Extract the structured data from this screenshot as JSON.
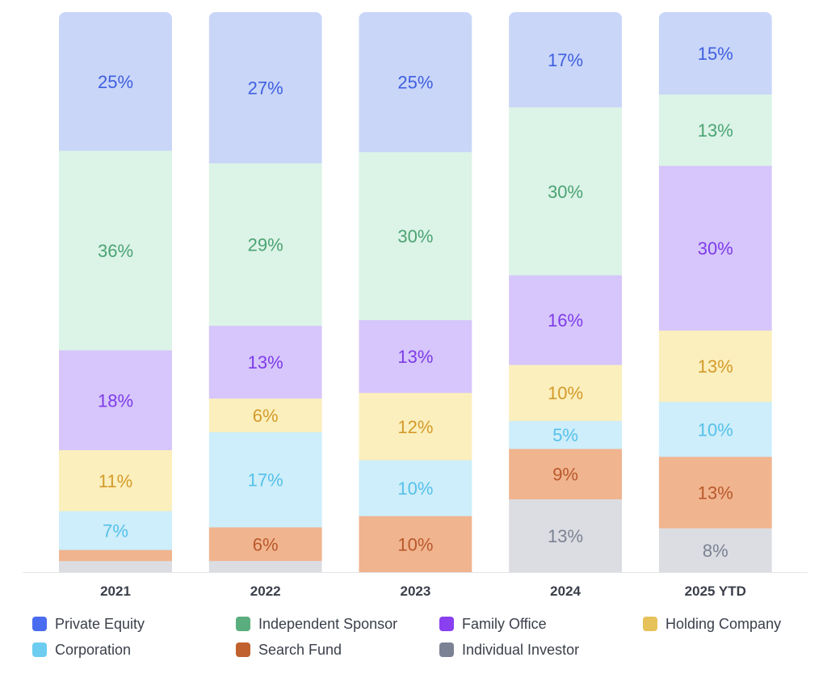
{
  "chart_data": {
    "type": "bar",
    "stacked": true,
    "normalized": true,
    "title": "",
    "xlabel": "",
    "ylabel": "",
    "ylim": [
      0,
      100
    ],
    "grid": false,
    "legend_position": "bottom",
    "categories": [
      "2021",
      "2022",
      "2023",
      "2024",
      "2025 YTD"
    ],
    "series": [
      {
        "name": "Private Equity",
        "color": "#4a6cf0",
        "fill": "#c9d6f8",
        "label_color": "#3f5fe0",
        "values": [
          25,
          27,
          25,
          17,
          15
        ],
        "labels": [
          "25%",
          "27%",
          "25%",
          "17%",
          "15%"
        ]
      },
      {
        "name": "Independent Sponsor",
        "color": "#5aae7e",
        "fill": "#dcf3e7",
        "label_color": "#4aa372",
        "values": [
          36,
          29,
          30,
          30,
          13
        ],
        "labels": [
          "36%",
          "29%",
          "30%",
          "30%",
          "13%"
        ]
      },
      {
        "name": "Family Office",
        "color": "#8a3ff0",
        "fill": "#d6c6fb",
        "label_color": "#7e3be8",
        "values": [
          18,
          13,
          13,
          16,
          30
        ],
        "labels": [
          "18%",
          "13%",
          "13%",
          "16%",
          "30%"
        ]
      },
      {
        "name": "Holding Company",
        "color": "#e6c25a",
        "fill": "#fbefbd",
        "label_color": "#d49a2a",
        "values": [
          11,
          6,
          12,
          10,
          13
        ],
        "labels": [
          "11%",
          "6%",
          "12%",
          "10%",
          "13%"
        ]
      },
      {
        "name": "Corporation",
        "color": "#6ccdf0",
        "fill": "#cdeefa",
        "label_color": "#56c0ea",
        "values": [
          7,
          17,
          10,
          5,
          10
        ],
        "labels": [
          "7%",
          "17%",
          "10%",
          "5%",
          "10%"
        ]
      },
      {
        "name": "Search Fund",
        "color": "#c0612e",
        "fill": "#f0b48f",
        "label_color": "#b9582a",
        "values": [
          2,
          6,
          10,
          9,
          13
        ],
        "labels": [
          "",
          "6%",
          "10%",
          "9%",
          "13%"
        ]
      },
      {
        "name": "Individual Investor",
        "color": "#7b8294",
        "fill": "#dcdde2",
        "label_color": "#7b8294",
        "values": [
          2,
          2,
          0,
          13,
          8
        ],
        "labels": [
          "",
          "",
          "",
          "13%",
          "8%"
        ]
      }
    ]
  }
}
